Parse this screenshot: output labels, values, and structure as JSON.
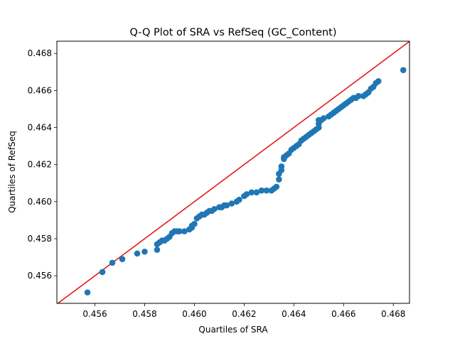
{
  "chart_data": {
    "type": "scatter",
    "title": "Q-Q Plot of SRA vs RefSeq (GC_Content)",
    "xlabel": "Quartiles of SRA",
    "ylabel": "Quartiles of RefSeq",
    "xlim": [
      0.45447,
      0.46865
    ],
    "ylim": [
      0.45451,
      0.46866
    ],
    "xticks": [
      0.456,
      0.458,
      0.46,
      0.462,
      0.464,
      0.466,
      0.468
    ],
    "yticks": [
      0.456,
      0.458,
      0.46,
      0.462,
      0.464,
      0.466,
      0.468
    ],
    "tick_format_decimals": 3,
    "grid": false,
    "series": [
      {
        "marker_color": "#1f77b4",
        "x": [
          0.4557,
          0.4563,
          0.4567,
          0.4571,
          0.4577,
          0.458,
          0.4585,
          0.4585,
          0.4586,
          0.4587,
          0.4588,
          0.4589,
          0.459,
          0.4591,
          0.4592,
          0.4593,
          0.4594,
          0.4596,
          0.4598,
          0.4599,
          0.4599,
          0.46,
          0.4601,
          0.4602,
          0.4603,
          0.4604,
          0.4605,
          0.4606,
          0.4607,
          0.4608,
          0.461,
          0.4611,
          0.4612,
          0.4613,
          0.4615,
          0.4617,
          0.4618,
          0.462,
          0.4621,
          0.4623,
          0.4625,
          0.4627,
          0.4629,
          0.4631,
          0.4632,
          0.4633,
          0.4634,
          0.4634,
          0.4635,
          0.4635,
          0.4636,
          0.4636,
          0.4637,
          0.4638,
          0.4639,
          0.464,
          0.4641,
          0.4642,
          0.4643,
          0.4644,
          0.4645,
          0.4646,
          0.4647,
          0.4648,
          0.4649,
          0.465,
          0.465,
          0.465,
          0.4651,
          0.4652,
          0.4654,
          0.4655,
          0.4656,
          0.4657,
          0.4658,
          0.4659,
          0.466,
          0.4661,
          0.4662,
          0.4663,
          0.4664,
          0.4665,
          0.4666,
          0.4668,
          0.4669,
          0.467,
          0.4671,
          0.4672,
          0.4673,
          0.4674,
          0.4684
        ],
        "y": [
          0.4551,
          0.4562,
          0.4567,
          0.4569,
          0.4572,
          0.4573,
          0.4574,
          0.4577,
          0.4578,
          0.4579,
          0.4579,
          0.458,
          0.4581,
          0.4583,
          0.4584,
          0.4584,
          0.4584,
          0.4584,
          0.4585,
          0.4586,
          0.4587,
          0.4588,
          0.4591,
          0.4592,
          0.4593,
          0.4593,
          0.4594,
          0.4595,
          0.4595,
          0.4596,
          0.4597,
          0.4597,
          0.4598,
          0.4598,
          0.4599,
          0.46,
          0.4601,
          0.4603,
          0.4604,
          0.4605,
          0.4605,
          0.4606,
          0.4606,
          0.4606,
          0.4607,
          0.4608,
          0.4612,
          0.4615,
          0.4617,
          0.4619,
          0.4623,
          0.4624,
          0.4625,
          0.4626,
          0.4628,
          0.4629,
          0.463,
          0.4631,
          0.4633,
          0.4634,
          0.4635,
          0.4636,
          0.4637,
          0.4638,
          0.4639,
          0.464,
          0.4642,
          0.4644,
          0.4644,
          0.4645,
          0.4646,
          0.4647,
          0.4648,
          0.4649,
          0.465,
          0.4651,
          0.4652,
          0.4653,
          0.4654,
          0.4655,
          0.4656,
          0.4656,
          0.4657,
          0.4657,
          0.4658,
          0.4659,
          0.4661,
          0.4662,
          0.4664,
          0.4665,
          0.4671
        ]
      }
    ],
    "reference_line": {
      "type": "y=x",
      "color": "#e31a1c"
    }
  }
}
